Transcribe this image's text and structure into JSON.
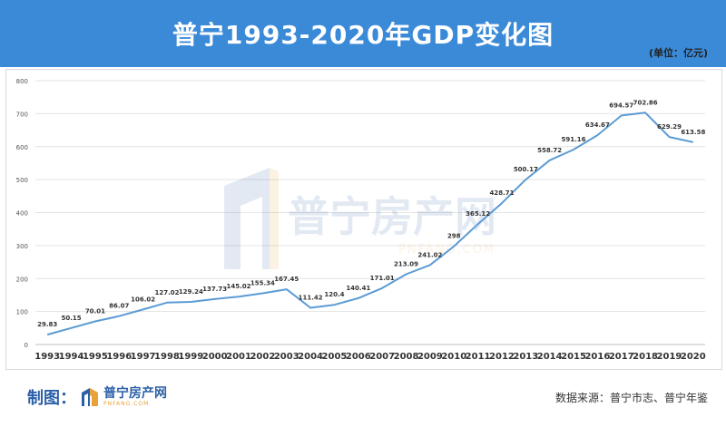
{
  "header": {
    "title": "普宁1993-2020年GDP变化图",
    "unit": "(单位：亿元)"
  },
  "footer": {
    "maker_label": "制图：",
    "logo_name": "普宁房产网",
    "logo_domain": "PNFANG.COM",
    "source": "数据来源：普宁市志、普宁年鉴"
  },
  "watermark": {
    "name": "普宁房产网",
    "domain": "PNFANG.COM"
  },
  "colors": {
    "header": "#3a8ad8",
    "line": "#5b9bd5"
  },
  "chart_data": {
    "type": "line",
    "categories": [
      "1993",
      "1994",
      "1995",
      "1996",
      "1997",
      "1998",
      "1999",
      "2000",
      "2001",
      "2002",
      "2003",
      "2004",
      "2005",
      "2006",
      "2007",
      "2008",
      "2009",
      "2010",
      "2011",
      "2012",
      "2013",
      "2014",
      "2015",
      "2016",
      "2017",
      "2018",
      "2019",
      "2020"
    ],
    "values": [
      29.83,
      50.15,
      70.01,
      86.07,
      106.02,
      127.02,
      129.24,
      137.73,
      145.02,
      155.34,
      167.45,
      111.42,
      120.4,
      140.41,
      171.01,
      213.09,
      241.02,
      298,
      365.12,
      428.71,
      500.17,
      558.72,
      591.16,
      634.67,
      694.57,
      702.86,
      629.29,
      613.58
    ],
    "labels": [
      "29.83",
      "50.15",
      "70.01",
      "86.07",
      "106.02",
      "127.02",
      "129.24",
      "137.73",
      "145.02",
      "155.34",
      "167.45",
      "111.42",
      "120.4",
      "140.41",
      "171.01",
      "213.09",
      "241.02",
      "298",
      "365.12",
      "428.71",
      "500.17",
      "558.72",
      "591.16",
      "634.67",
      "694.57",
      "702.86",
      "629.29",
      "613.58"
    ],
    "ylim": [
      0,
      800
    ],
    "yticks": [
      "0",
      "100",
      "200",
      "300",
      "400",
      "500",
      "600",
      "700",
      "800"
    ],
    "grid": true
  }
}
